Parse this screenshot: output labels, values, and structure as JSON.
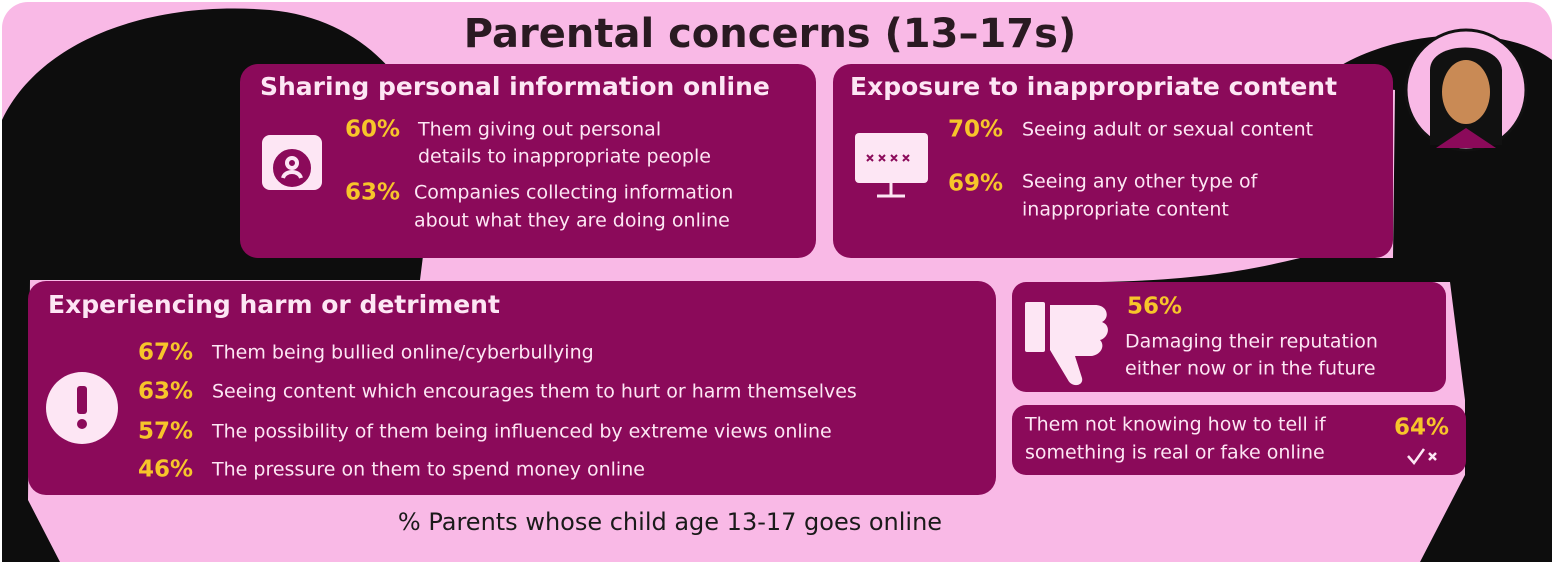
{
  "title": "Parental concerns (13–17s)",
  "panels": [
    {
      "heading": "Sharing personal information online",
      "items": [
        {
          "value": "60%",
          "lines": [
            "Them giving out personal",
            "details to inappropriate people"
          ]
        },
        {
          "value": "63%",
          "lines": [
            "Companies collecting information",
            "about what they are doing online"
          ]
        }
      ]
    },
    {
      "heading": "Exposure to inappropriate content",
      "items": [
        {
          "value": "70%",
          "lines": [
            "Seeing adult or sexual content"
          ]
        },
        {
          "value": "69%",
          "lines": [
            "Seeing any other type of",
            "inappropriate content"
          ]
        }
      ]
    },
    {
      "heading": "Experiencing harm or detriment",
      "items": [
        {
          "value": "67%",
          "lines": [
            "Them being bullied online/cyberbullying"
          ]
        },
        {
          "value": "63%",
          "lines": [
            "Seeing content which encourages them to hurt or harm themselves"
          ]
        },
        {
          "value": "57%",
          "lines": [
            "The possibility of them being influenced by extreme views online"
          ]
        },
        {
          "value": "46%",
          "lines": [
            "The pressure on them to spend money online"
          ]
        }
      ]
    },
    {
      "items": [
        {
          "value": "56%",
          "lines": [
            "Damaging their reputation",
            "either now or in the future"
          ]
        }
      ]
    },
    {
      "items": [
        {
          "value": "64%",
          "lines": [
            "Them not knowing how to tell if",
            "something is real or fake online"
          ]
        }
      ]
    }
  ],
  "footer": "% Parents whose child age 13-17 goes online"
}
